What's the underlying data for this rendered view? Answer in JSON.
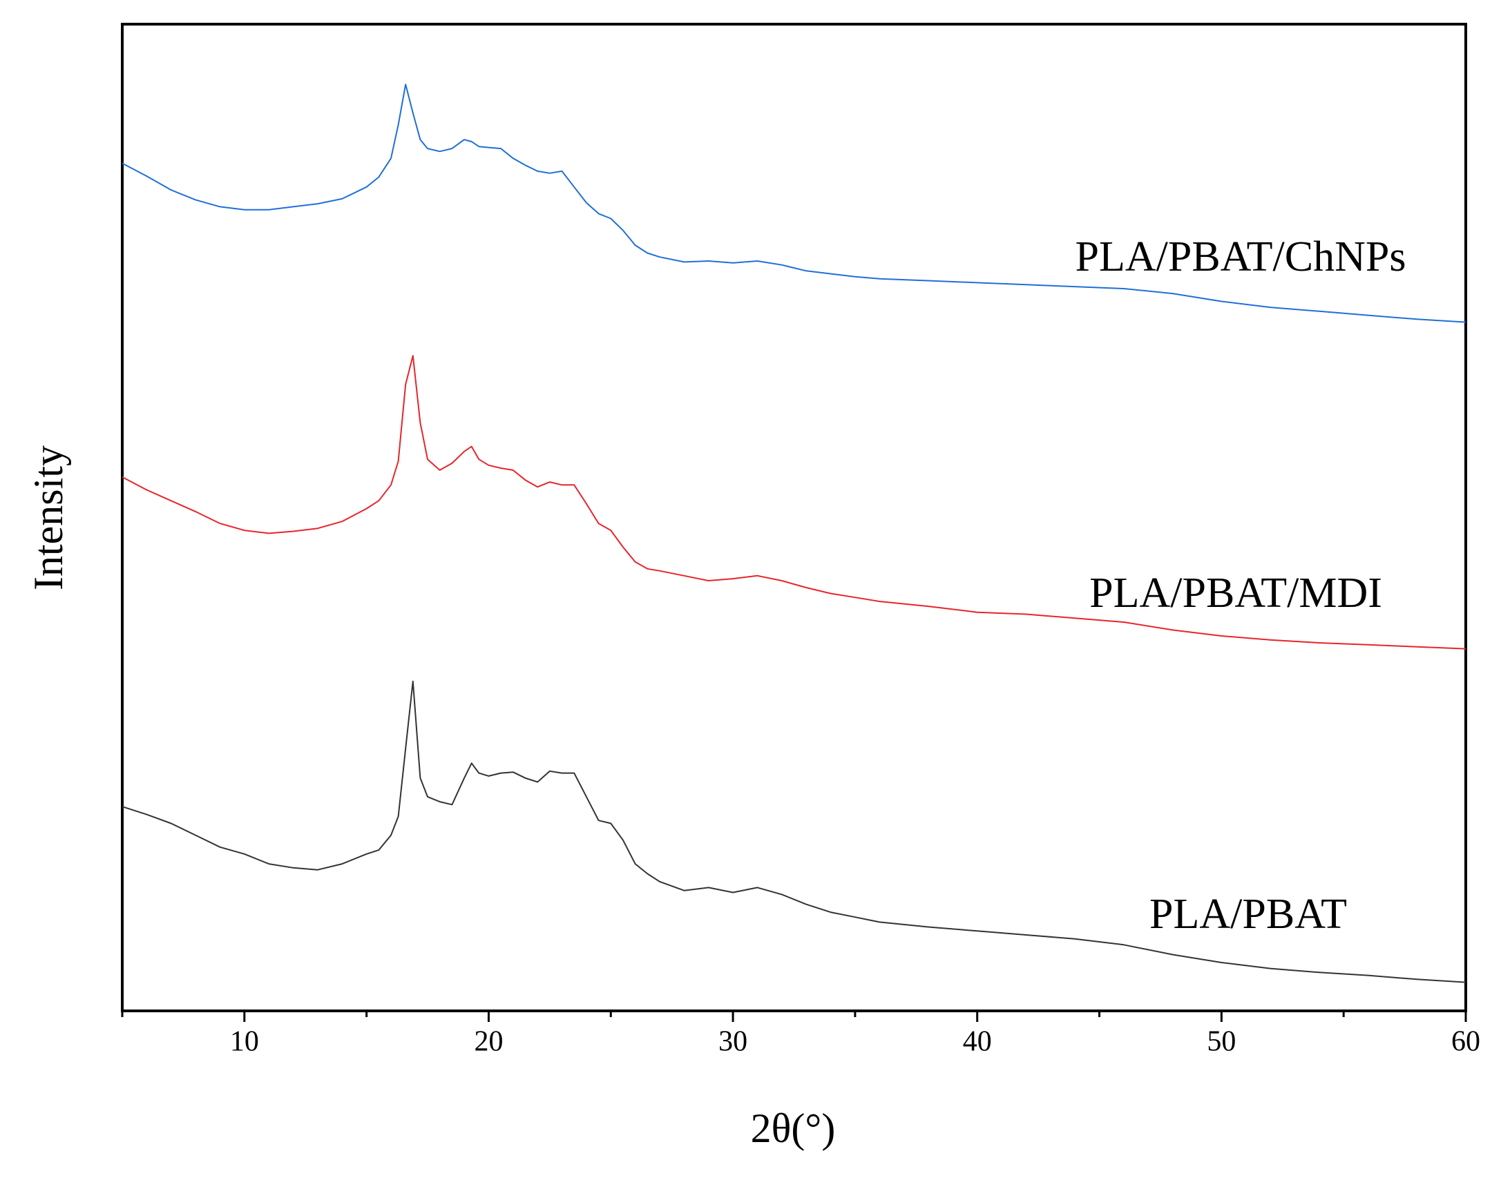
{
  "chart_data": {
    "type": "line",
    "x_label": "2θ(°)",
    "y_label": "Intensity",
    "xlim": [
      5,
      60
    ],
    "xticks": [
      10,
      20,
      30,
      40,
      50,
      60
    ],
    "ylim": [
      0,
      100
    ],
    "x": [
      5,
      6,
      7,
      8,
      9,
      10,
      11,
      12,
      13,
      14,
      15,
      15.5,
      16,
      16.3,
      16.6,
      16.9,
      17.2,
      17.5,
      18,
      18.5,
      19,
      19.3,
      19.6,
      20,
      20.5,
      21,
      21.5,
      22,
      22.5,
      23,
      23.5,
      24,
      24.5,
      25,
      25.5,
      26,
      26.5,
      27,
      28,
      29,
      30,
      31,
      32,
      33,
      34,
      35,
      36,
      38,
      40,
      42,
      44,
      46,
      48,
      50,
      52,
      54,
      56,
      58,
      60
    ],
    "series": [
      {
        "name": "PLA/PBAT/ChNPs",
        "color": "#1f6fd6",
        "values": [
          85.9,
          84.6,
          83.2,
          82.2,
          81.5,
          81.2,
          81.2,
          81.5,
          81.8,
          82.3,
          83.5,
          84.5,
          86.4,
          89.8,
          93.9,
          91.0,
          88.3,
          87.4,
          87.1,
          87.4,
          88.3,
          88.1,
          87.6,
          87.5,
          87.4,
          86.4,
          85.7,
          85.1,
          84.9,
          85.1,
          83.5,
          81.9,
          80.8,
          80.3,
          79.1,
          77.6,
          76.8,
          76.4,
          75.9,
          76.0,
          75.8,
          76.0,
          75.6,
          75.0,
          74.7,
          74.4,
          74.2,
          74.0,
          73.8,
          73.6,
          73.4,
          73.2,
          72.7,
          71.9,
          71.3,
          70.9,
          70.5,
          70.1,
          69.8
        ]
      },
      {
        "name": "PLA/PBAT/MDI",
        "color": "#e8242a",
        "values": [
          54.1,
          52.8,
          51.7,
          50.6,
          49.4,
          48.7,
          48.4,
          48.6,
          48.9,
          49.6,
          50.9,
          51.7,
          53.3,
          55.7,
          63.5,
          66.4,
          59.6,
          55.9,
          54.8,
          55.5,
          56.7,
          57.2,
          55.9,
          55.3,
          55.0,
          54.8,
          53.8,
          53.1,
          53.6,
          53.3,
          53.3,
          51.4,
          49.4,
          48.7,
          47.0,
          45.5,
          44.8,
          44.6,
          44.1,
          43.6,
          43.8,
          44.1,
          43.6,
          42.9,
          42.3,
          41.9,
          41.5,
          41.0,
          40.4,
          40.2,
          39.8,
          39.4,
          38.6,
          38.0,
          37.6,
          37.3,
          37.1,
          36.9,
          36.7
        ]
      },
      {
        "name": "PLA/PBAT",
        "color": "#333333",
        "values": [
          20.7,
          19.9,
          19.0,
          17.8,
          16.6,
          15.9,
          14.9,
          14.5,
          14.3,
          14.9,
          15.9,
          16.3,
          17.8,
          19.7,
          26.6,
          33.4,
          23.6,
          21.7,
          21.2,
          20.9,
          23.6,
          25.1,
          24.1,
          23.8,
          24.1,
          24.2,
          23.6,
          23.2,
          24.3,
          24.1,
          24.1,
          21.7,
          19.3,
          19.0,
          17.3,
          14.9,
          13.9,
          13.1,
          12.2,
          12.5,
          12.0,
          12.5,
          11.8,
          10.8,
          10.0,
          9.5,
          9.0,
          8.5,
          8.1,
          7.7,
          7.3,
          6.7,
          5.7,
          4.9,
          4.3,
          3.9,
          3.6,
          3.2,
          2.9
        ]
      }
    ]
  }
}
